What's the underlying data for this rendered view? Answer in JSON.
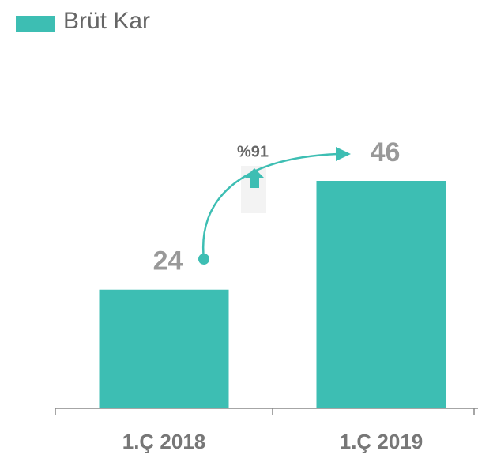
{
  "chart_data": {
    "type": "bar",
    "series": [
      {
        "name": "Brüt Kar",
        "color": "#3dbeb3",
        "values": [
          24,
          46
        ]
      }
    ],
    "categories": [
      "1.Ç 2018",
      "1.Ç 2019"
    ],
    "annotation": "%91"
  }
}
